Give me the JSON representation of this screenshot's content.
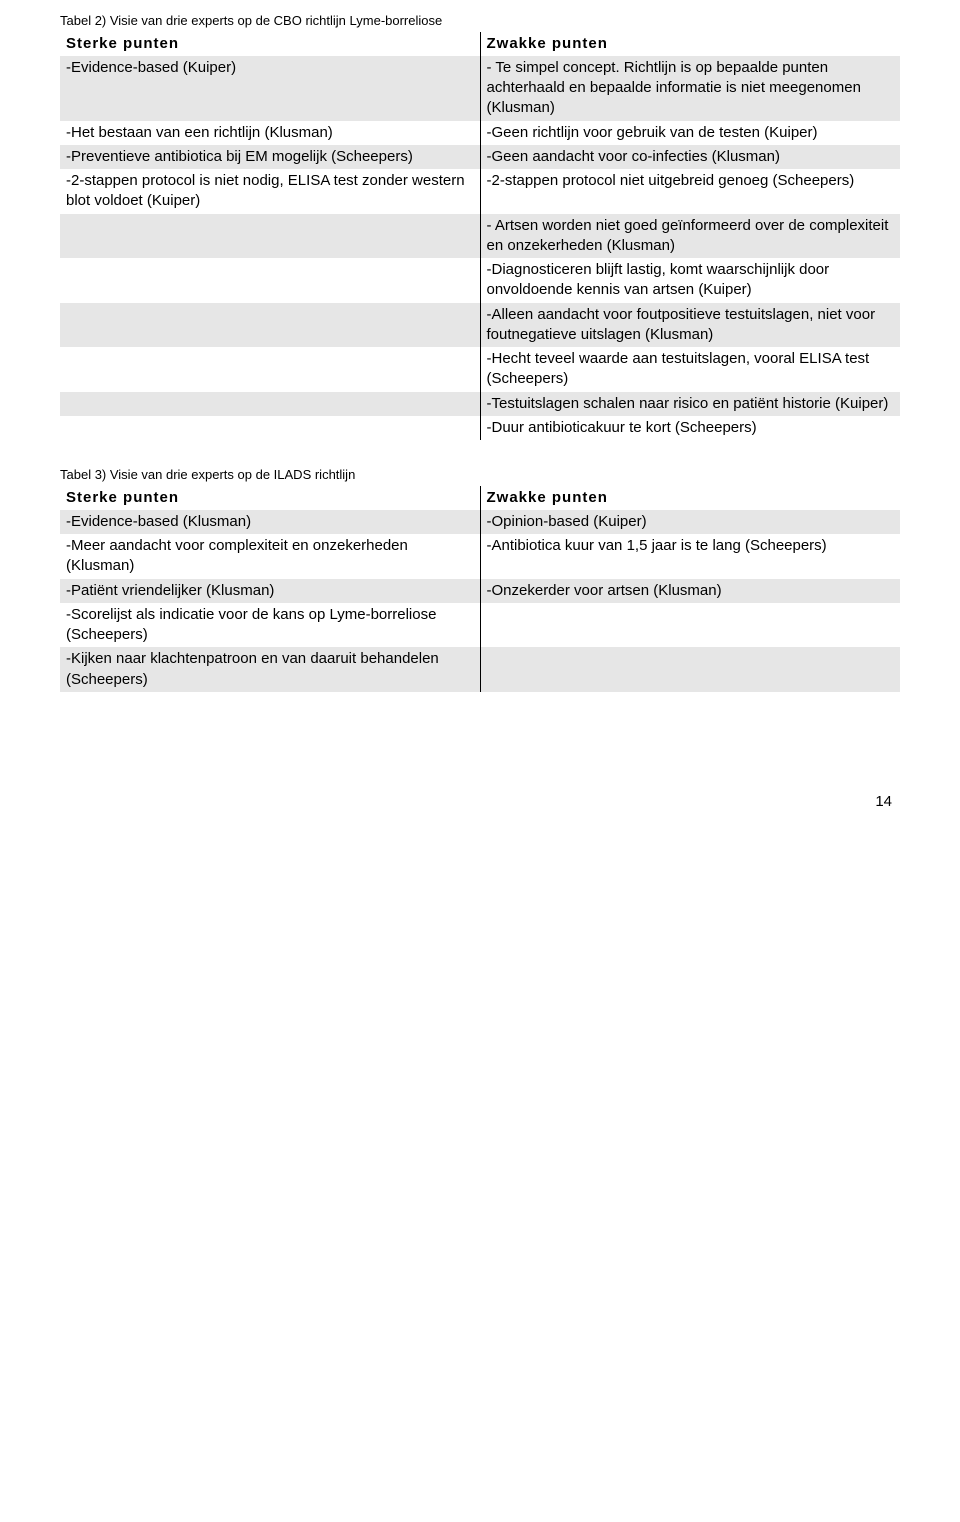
{
  "page_number": "14",
  "colors": {
    "row_alt_bg": "#e6e6e6",
    "row_bg": "#ffffff",
    "text": "#000000",
    "border": "#000000"
  },
  "table2": {
    "caption": "Tabel 2) Visie van drie experts op de CBO richtlijn Lyme-borreliose",
    "header_left": "Sterke punten",
    "header_right": "Zwakke punten",
    "rows": [
      {
        "left": "-Evidence-based (Kuiper)",
        "right": "- Te simpel concept. Richtlijn is op bepaalde punten achterhaald en bepaalde informatie is niet meegenomen (Klusman)"
      },
      {
        "left": "-Het bestaan van een richtlijn (Klusman)",
        "right": "-Geen richtlijn voor gebruik van de testen (Kuiper)"
      },
      {
        "left": "-Preventieve antibiotica bij EM mogelijk  (Scheepers)",
        "right": "-Geen aandacht voor co-infecties (Klusman)"
      },
      {
        "left": "-2-stappen protocol is niet nodig, ELISA test zonder western blot voldoet (Kuiper)",
        "right": "-2-stappen protocol niet uitgebreid genoeg (Scheepers)"
      },
      {
        "left": "",
        "right": "- Artsen worden niet goed geïnformeerd over de complexiteit en onzekerheden (Klusman)"
      },
      {
        "left": "",
        "right": "-Diagnosticeren blijft lastig, komt waarschijnlijk door onvoldoende kennis van artsen (Kuiper)"
      },
      {
        "left": "",
        "right": "-Alleen aandacht voor foutpositieve  testuitslagen, niet voor foutnegatieve  uitslagen (Klusman)"
      },
      {
        "left": "",
        "right": "-Hecht teveel waarde aan testuitslagen, vooral ELISA test (Scheepers)"
      },
      {
        "left": "",
        "right": "-Testuitslagen schalen naar risico en patiënt historie (Kuiper)"
      },
      {
        "left": "",
        "right": "-Duur antibioticakuur te kort (Scheepers)"
      }
    ]
  },
  "table3": {
    "caption": "Tabel 3) Visie van drie experts op de ILADS richtlijn",
    "header_left": "Sterke punten",
    "header_right": "Zwakke punten",
    "rows": [
      {
        "left": "-Evidence-based (Klusman)",
        "right": "-Opinion-based (Kuiper)"
      },
      {
        "left": "-Meer aandacht voor complexiteit en onzekerheden (Klusman)",
        "right": "-Antibiotica kuur van 1,5 jaar is te lang  (Scheepers)"
      },
      {
        "left": "-Patiënt vriendelijker (Klusman)",
        "right": "-Onzekerder voor artsen (Klusman)"
      },
      {
        "left": "-Scorelijst als indicatie voor de kans op  Lyme-borreliose (Scheepers)",
        "right": ""
      },
      {
        "left": "-Kijken naar klachtenpatroon en van daaruit behandelen (Scheepers)",
        "right": ""
      }
    ]
  }
}
